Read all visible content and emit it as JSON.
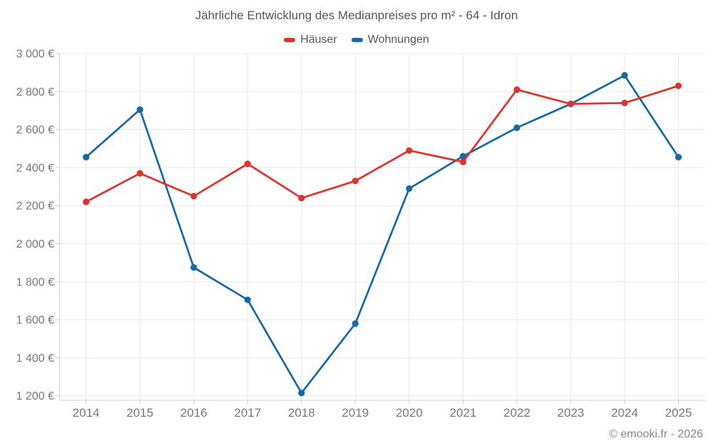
{
  "chart": {
    "title": "Jährliche Entwicklung des Medianpreises pro m² - 64 - Idron"
  },
  "footer": {
    "copyright": "© emooki.fr - 2026"
  },
  "colors": {
    "haeuser": "#e0312d",
    "wohnungen": "#1569a7",
    "grid": "#e8e8e8",
    "axis": "#cfcfcf",
    "axis_label": "#77787a",
    "title_text": "#54565a"
  },
  "chart_data": {
    "type": "line",
    "title": "Jährliche Entwicklung des Medianpreises pro m² - 64 - Idron",
    "categories": [
      "2014",
      "2015",
      "2016",
      "2017",
      "2018",
      "2019",
      "2020",
      "2021",
      "2022",
      "2023",
      "2024",
      "2025"
    ],
    "series": [
      {
        "name": "Häuser",
        "color": "#e0312d",
        "values": [
          2220,
          2370,
          2250,
          2420,
          2240,
          2330,
          2490,
          2430,
          2810,
          2735,
          2740,
          2830
        ]
      },
      {
        "name": "Wohnungen",
        "color": "#1569a7",
        "values": [
          2455,
          2705,
          1875,
          1705,
          1215,
          1580,
          2290,
          2460,
          2610,
          2735,
          2885,
          2455
        ]
      }
    ],
    "xlabel": "",
    "ylabel": "",
    "ylim": [
      1200,
      3000
    ],
    "y_axis": {
      "tick_values": [
        3000,
        2800,
        2600,
        2400,
        2200,
        2000,
        1800,
        1600,
        1400,
        1200
      ],
      "tick_labels": [
        "3 000 €",
        "2 800 €",
        "2 600 €",
        "2 400 €",
        "2 200 €",
        "2 000 €",
        "1 800 €",
        "1 600 €",
        "1 400 €",
        "1 200 €"
      ]
    },
    "grid": true,
    "legend_position": "top",
    "currency": "€"
  }
}
